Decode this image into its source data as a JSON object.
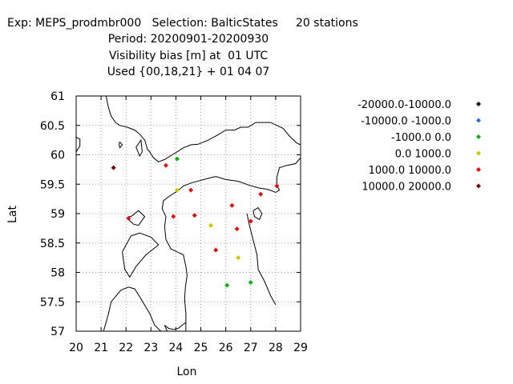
{
  "header": {
    "line1": "Exp: MEPS_prodmbr000   Selection: BalticStates     20 stations",
    "line2": "Period: 20200901-20200930",
    "line3": "Visibility bias [m] at  01 UTC",
    "line4": "Used {00,18,21} + 01 04 07"
  },
  "chart_data": {
    "type": "scatter",
    "title": "Visibility bias [m] at  01 UTC",
    "xlabel": "Lon",
    "ylabel": "Lat",
    "xlim": [
      20,
      29
    ],
    "ylim": [
      57,
      61
    ],
    "xticks": [
      "20",
      "21",
      "22",
      "23",
      "24",
      "25",
      "26",
      "27",
      "28",
      "29"
    ],
    "yticks": [
      "57",
      "57.5",
      "58",
      "58.5",
      "59",
      "59.5",
      "60",
      "60.5",
      "61"
    ],
    "grid": true,
    "legend_position": "right",
    "series": [
      {
        "name": "-20000.0-10000.0",
        "color": "#000000",
        "points": []
      },
      {
        "name": "-10000.0 -1000.0",
        "color": "#2b6fd8",
        "points": []
      },
      {
        "name": "-1000.0 0.0",
        "color": "#10b010",
        "points": [
          [
            24.05,
            59.93
          ],
          [
            26.05,
            57.78
          ],
          [
            27.0,
            57.83
          ]
        ]
      },
      {
        "name": "0.0 1000.0",
        "color": "#c8c800",
        "points": [
          [
            24.05,
            59.4
          ],
          [
            25.4,
            58.8
          ],
          [
            26.5,
            58.25
          ]
        ]
      },
      {
        "name": "1000.0 10000.0",
        "color": "#e01010",
        "points": [
          [
            23.6,
            59.82
          ],
          [
            24.6,
            59.4
          ],
          [
            22.1,
            58.92
          ],
          [
            23.9,
            58.95
          ],
          [
            24.75,
            58.97
          ],
          [
            26.25,
            59.14
          ],
          [
            26.45,
            58.74
          ],
          [
            27.0,
            58.87
          ],
          [
            25.6,
            58.38
          ],
          [
            27.4,
            59.33
          ],
          [
            28.05,
            59.47
          ]
        ]
      },
      {
        "name": "10000.0 20000.0",
        "color": "#800000",
        "points": [
          [
            21.5,
            59.78
          ]
        ]
      }
    ],
    "coastlines": [
      [
        [
          20,
          60.3
        ],
        [
          20.15,
          60.27
        ],
        [
          20.15,
          60.15
        ],
        [
          20,
          60.05
        ]
      ],
      [
        [
          21.2,
          61
        ],
        [
          21.3,
          60.8
        ],
        [
          21.4,
          60.66
        ],
        [
          21.58,
          60.55
        ],
        [
          21.75,
          60.5
        ],
        [
          22.05,
          60.47
        ],
        [
          22.35,
          60.42
        ],
        [
          22.55,
          60.35
        ],
        [
          22.75,
          60.25
        ],
        [
          22.85,
          60.1
        ],
        [
          22.95,
          60.05
        ],
        [
          23.1,
          59.95
        ],
        [
          23.3,
          59.88
        ],
        [
          23.55,
          59.92
        ],
        [
          23.85,
          60.0
        ],
        [
          24.05,
          60.05
        ],
        [
          24.3,
          60.12
        ],
        [
          24.6,
          60.17
        ],
        [
          24.9,
          60.18
        ],
        [
          25.3,
          60.25
        ],
        [
          25.65,
          60.33
        ],
        [
          26.0,
          60.42
        ],
        [
          26.35,
          60.42
        ],
        [
          26.6,
          60.47
        ],
        [
          26.9,
          60.47
        ],
        [
          27.2,
          60.55
        ],
        [
          27.55,
          60.55
        ],
        [
          27.8,
          60.55
        ],
        [
          28.05,
          60.5
        ],
        [
          28.3,
          60.45
        ],
        [
          28.55,
          60.32
        ],
        [
          28.85,
          60.2
        ],
        [
          29,
          60.17
        ]
      ],
      [
        [
          21.75,
          60.22
        ],
        [
          21.85,
          60.17
        ],
        [
          21.75,
          60.12
        ],
        [
          21.72,
          60.18
        ],
        [
          21.75,
          60.22
        ]
      ],
      [
        [
          22.4,
          60.13
        ],
        [
          22.6,
          60.25
        ],
        [
          22.65,
          60.05
        ],
        [
          22.55,
          59.98
        ],
        [
          22.4,
          60.13
        ]
      ],
      [
        [
          29,
          59.95
        ],
        [
          28.8,
          59.85
        ],
        [
          28.45,
          59.82
        ],
        [
          28.15,
          59.78
        ],
        [
          28.05,
          59.62
        ],
        [
          28.05,
          59.48
        ],
        [
          28.15,
          59.4
        ],
        [
          28.0,
          59.36
        ],
        [
          27.7,
          59.41
        ],
        [
          27.3,
          59.44
        ],
        [
          26.95,
          59.48
        ],
        [
          26.5,
          59.55
        ],
        [
          26.0,
          59.58
        ],
        [
          25.6,
          59.63
        ],
        [
          25.3,
          59.6
        ],
        [
          24.95,
          59.56
        ],
        [
          24.6,
          59.52
        ],
        [
          24.3,
          59.47
        ],
        [
          24.05,
          59.38
        ],
        [
          23.75,
          59.3
        ],
        [
          23.5,
          59.22
        ],
        [
          23.45,
          59.08
        ],
        [
          23.6,
          58.95
        ],
        [
          23.55,
          58.78
        ],
        [
          23.6,
          58.56
        ],
        [
          23.8,
          58.4
        ],
        [
          24.05,
          58.35
        ],
        [
          24.3,
          58.3
        ],
        [
          24.4,
          58.1
        ],
        [
          24.45,
          57.95
        ],
        [
          24.38,
          57.75
        ],
        [
          24.35,
          57.55
        ],
        [
          24.4,
          57.3
        ],
        [
          24.4,
          57.0
        ]
      ],
      [
        [
          22.1,
          58.95
        ],
        [
          22.2,
          58.95
        ],
        [
          22.5,
          59.05
        ],
        [
          22.75,
          58.95
        ],
        [
          22.5,
          58.8
        ],
        [
          22.3,
          58.82
        ],
        [
          22.15,
          58.88
        ],
        [
          22.1,
          58.95
        ]
      ],
      [
        [
          21.85,
          58.35
        ],
        [
          22.2,
          58.62
        ],
        [
          22.55,
          58.67
        ],
        [
          23.0,
          58.6
        ],
        [
          23.3,
          58.47
        ],
        [
          23.1,
          58.4
        ],
        [
          22.8,
          58.3
        ],
        [
          22.4,
          58.1
        ],
        [
          22.15,
          57.92
        ],
        [
          21.95,
          58.05
        ],
        [
          21.85,
          58.35
        ]
      ],
      [
        [
          21.1,
          57.0
        ],
        [
          21.3,
          57.3
        ],
        [
          21.4,
          57.5
        ],
        [
          21.6,
          57.6
        ],
        [
          21.8,
          57.7
        ],
        [
          22.1,
          57.75
        ],
        [
          22.35,
          57.72
        ],
        [
          22.6,
          57.55
        ],
        [
          22.95,
          57.3
        ],
        [
          23.15,
          57.1
        ],
        [
          23.4,
          57.0
        ]
      ],
      [
        [
          23.65,
          57.0
        ],
        [
          23.55,
          57.1
        ],
        [
          23.7,
          57.05
        ],
        [
          23.9,
          57.03
        ],
        [
          24.1,
          57.05
        ],
        [
          24.25,
          57.1
        ],
        [
          24.4,
          57.15
        ]
      ],
      [
        [
          26.85,
          59.0
        ],
        [
          26.95,
          58.8
        ],
        [
          27.1,
          58.55
        ],
        [
          27.25,
          58.3
        ],
        [
          27.3,
          58.05
        ],
        [
          27.55,
          57.85
        ],
        [
          27.8,
          57.6
        ],
        [
          28.0,
          57.45
        ]
      ],
      [
        [
          27.1,
          59.05
        ],
        [
          27.3,
          59.1
        ],
        [
          27.45,
          59.0
        ],
        [
          27.35,
          58.9
        ],
        [
          27.15,
          58.95
        ],
        [
          27.1,
          59.05
        ]
      ]
    ]
  }
}
